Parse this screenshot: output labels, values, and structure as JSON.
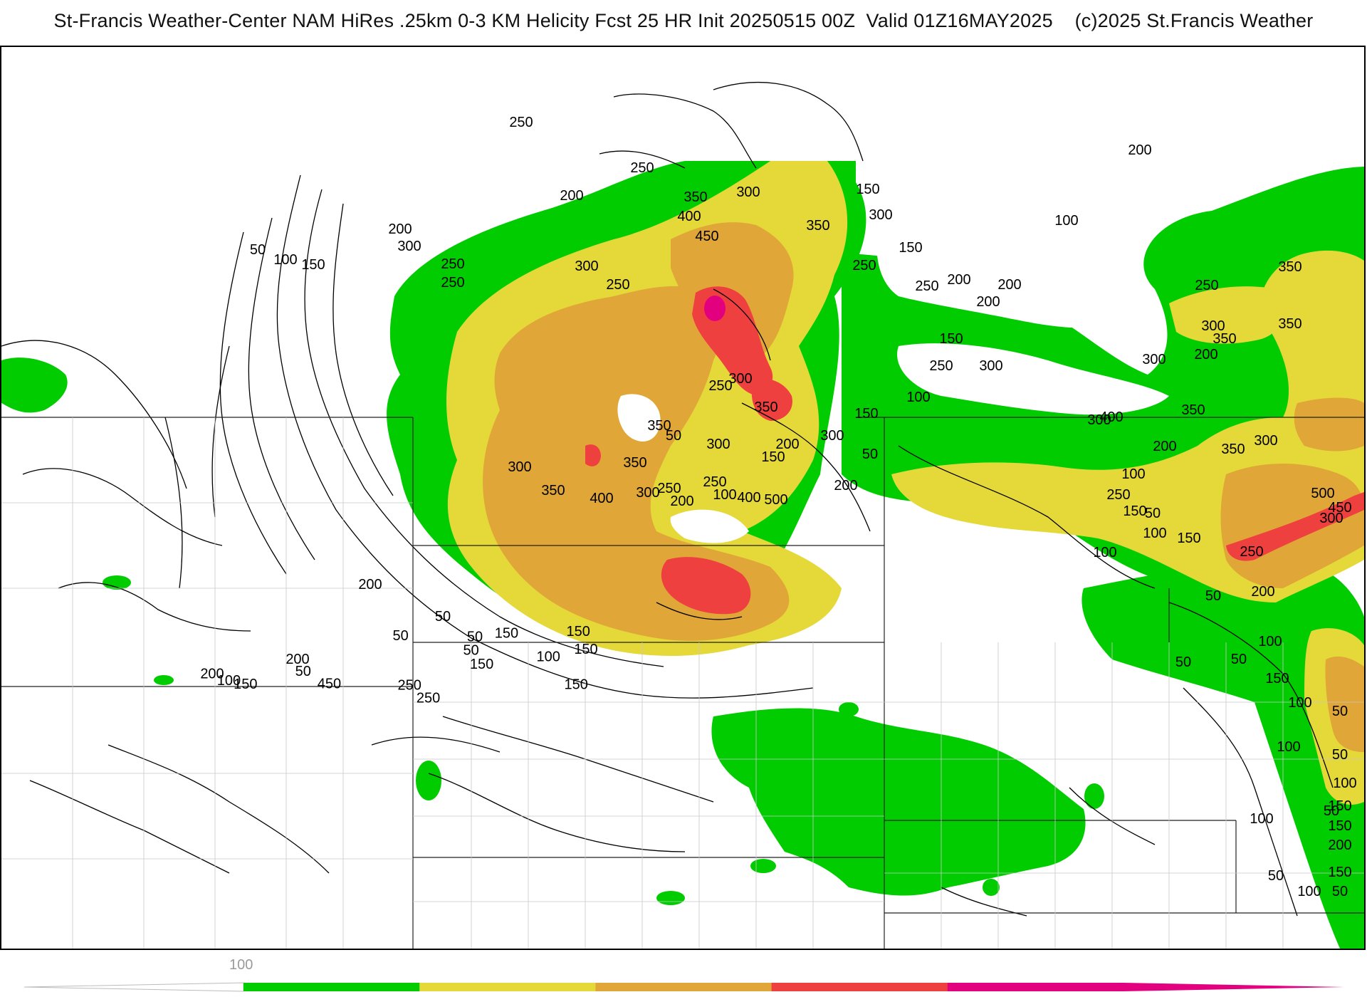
{
  "header": {
    "title": "St-Francis Weather-Center NAM HiRes .25km 0-3 KM Helicity Fcst 25 HR Init 20250515 00Z  Valid 01Z16MAY2025    (c)2025 St.Francis Weather"
  },
  "colors": {
    "green": "#00cc00",
    "yellow": "#e5d93a",
    "orange": "#e0a638",
    "red": "#ef4040",
    "magenta": "#e3007f"
  },
  "colorbar": {
    "tick_label": "100",
    "segments": [
      "#00cc00",
      "#e5d93a",
      "#e0a638",
      "#ef4040",
      "#e3007f"
    ]
  },
  "contour_labels": [
    "250",
    "250",
    "200",
    "350",
    "300",
    "400",
    "450",
    "150",
    "300",
    "350",
    "250",
    "200",
    "250",
    "300",
    "250",
    "50",
    "100",
    "150",
    "300",
    "250",
    "350",
    "300",
    "300",
    "250",
    "250",
    "150",
    "200",
    "200",
    "150",
    "250",
    "200",
    "200",
    "100",
    "200",
    "300",
    "400",
    "350",
    "350",
    "300",
    "100",
    "350",
    "300",
    "150",
    "300",
    "200",
    "350",
    "300",
    "250",
    "50",
    "150",
    "250",
    "100",
    "350",
    "300",
    "50",
    "350",
    "300",
    "250",
    "200",
    "300",
    "350",
    "400",
    "500",
    "400",
    "200",
    "350",
    "200",
    "500",
    "450",
    "300",
    "100",
    "250",
    "150",
    "50",
    "100",
    "100",
    "150",
    "250",
    "50",
    "200",
    "100",
    "50",
    "50",
    "150",
    "100",
    "50",
    "50",
    "100",
    "100",
    "150",
    "50",
    "150",
    "200",
    "100",
    "150",
    "50",
    "100",
    "50",
    "200",
    "50",
    "50",
    "50",
    "150",
    "50",
    "150",
    "150",
    "150",
    "100",
    "150",
    "200",
    "450",
    "250",
    "250",
    "200",
    "100",
    "150",
    "50"
  ]
}
